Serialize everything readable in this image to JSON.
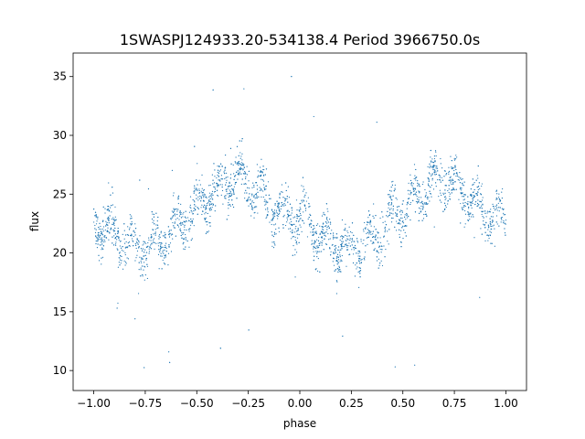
{
  "chart_data": {
    "type": "scatter",
    "title": "1SWASPJ124933.20-534138.4 Period 3966750.0s",
    "xlabel": "phase",
    "ylabel": "flux",
    "xlim": [
      -1.1,
      1.1
    ],
    "ylim": [
      8.3,
      37.0
    ],
    "xticks": [
      -1.0,
      -0.75,
      -0.5,
      -0.25,
      0.0,
      0.25,
      0.5,
      0.75,
      1.0
    ],
    "xtick_labels": [
      "−1.00",
      "−0.75",
      "−0.50",
      "−0.25",
      "0.00",
      "0.25",
      "0.50",
      "0.75",
      "1.00"
    ],
    "yticks": [
      10,
      15,
      20,
      25,
      30,
      35
    ],
    "ytick_labels": [
      "10",
      "15",
      "20",
      "25",
      "30",
      "35"
    ],
    "grid": false,
    "series": [
      {
        "color": "#1f77b4",
        "marker_size": 0.6,
        "trend_x": [
          -1.0,
          -0.95,
          -0.9,
          -0.85,
          -0.8,
          -0.75,
          -0.7,
          -0.65,
          -0.6,
          -0.55,
          -0.5,
          -0.45,
          -0.4,
          -0.35,
          -0.3,
          -0.25,
          -0.2,
          -0.15,
          -0.1,
          -0.05,
          0.0,
          0.05,
          0.1,
          0.15,
          0.2,
          0.25,
          0.3,
          0.35,
          0.4,
          0.45,
          0.5,
          0.55,
          0.6,
          0.65,
          0.7,
          0.75,
          0.8,
          0.85,
          0.9,
          0.95,
          1.0
        ],
        "trend_y": [
          23.0,
          22.3,
          21.5,
          20.9,
          20.5,
          20.3,
          20.6,
          21.3,
          22.2,
          23.0,
          23.8,
          24.6,
          25.4,
          26.0,
          26.3,
          26.0,
          25.2,
          24.2,
          23.4,
          23.2,
          23.0,
          22.3,
          21.5,
          20.9,
          20.5,
          20.3,
          20.6,
          21.3,
          22.2,
          23.0,
          23.8,
          24.6,
          25.4,
          26.0,
          26.3,
          26.0,
          25.2,
          24.2,
          23.4,
          23.2,
          23.0
        ],
        "spread": 2.2,
        "outlier_range": [
          10.0,
          35.7
        ]
      }
    ]
  }
}
